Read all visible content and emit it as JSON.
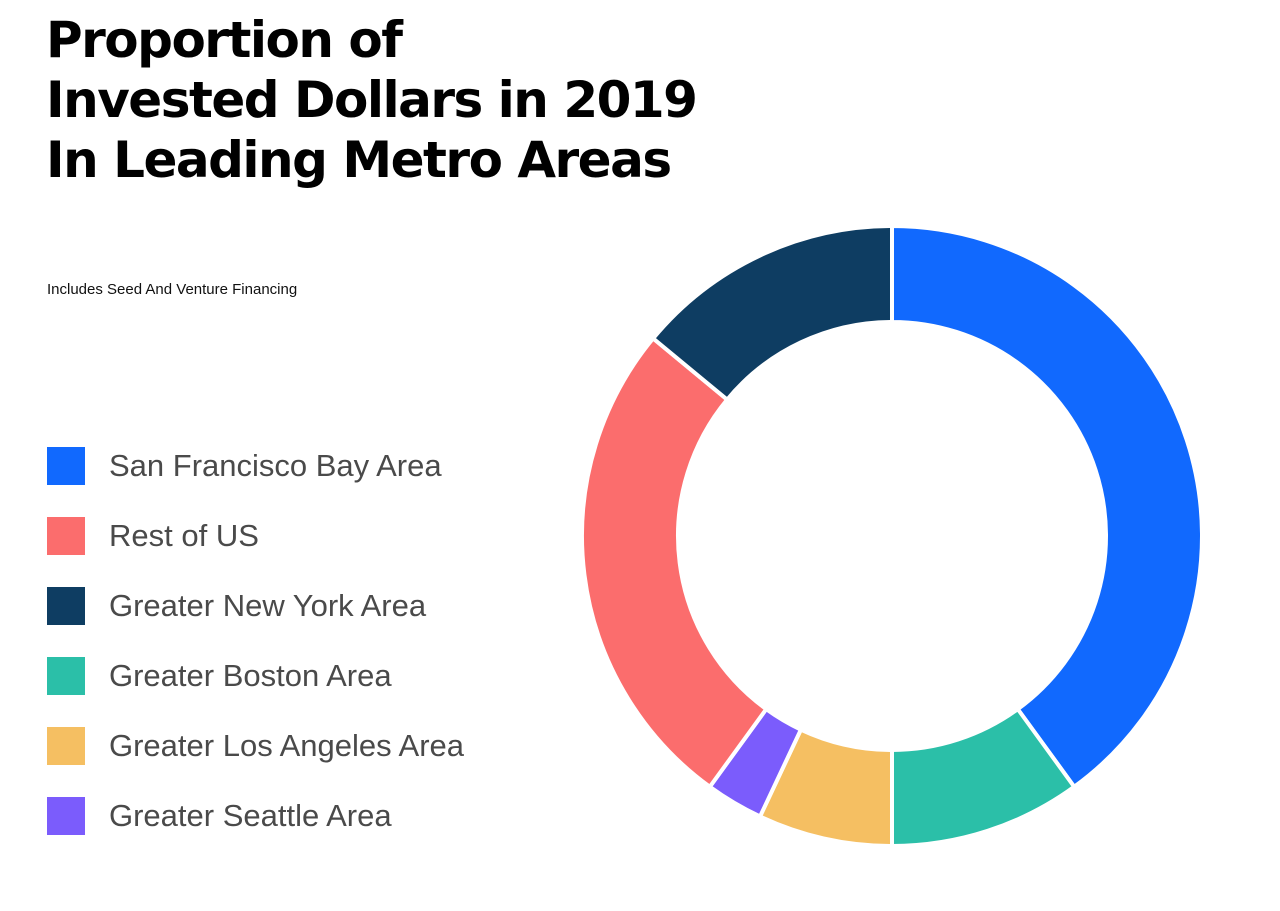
{
  "header": {
    "title_lines": [
      "Proportion of",
      "Invested Dollars in 2019",
      "In Leading Metro Areas"
    ],
    "subtitle": "Includes Seed And Venture Financing"
  },
  "chart_data": {
    "type": "pie",
    "variant": "donut",
    "title": "Proportion of Invested Dollars in 2019 In Leading Metro Areas",
    "subtitle": "Includes Seed And Venture Financing",
    "legend_position": "left",
    "start_angle": "12 o'clock",
    "direction": "clockwise",
    "unit": "percent",
    "categories": [
      "San Francisco Bay Area",
      "Greater Boston Area",
      "Greater Los Angeles Area",
      "Greater Seattle Area",
      "Rest of US",
      "Greater New York Area"
    ],
    "values": [
      40,
      10,
      7,
      3,
      26,
      14
    ],
    "colors": [
      "#1169fe",
      "#2bbfa8",
      "#f5bf62",
      "#7b5cfc",
      "#fb6d6d",
      "#0e3d62"
    ]
  },
  "legend": {
    "items": [
      {
        "label": "San Francisco Bay Area",
        "color": "#1169fe"
      },
      {
        "label": "Rest of US",
        "color": "#fb6d6d"
      },
      {
        "label": "Greater New York Area",
        "color": "#0e3d62"
      },
      {
        "label": "Greater Boston Area",
        "color": "#2bbfa8"
      },
      {
        "label": "Greater Los Angeles Area",
        "color": "#f5bf62"
      },
      {
        "label": "Greater Seattle Area",
        "color": "#7b5cfc"
      }
    ]
  }
}
